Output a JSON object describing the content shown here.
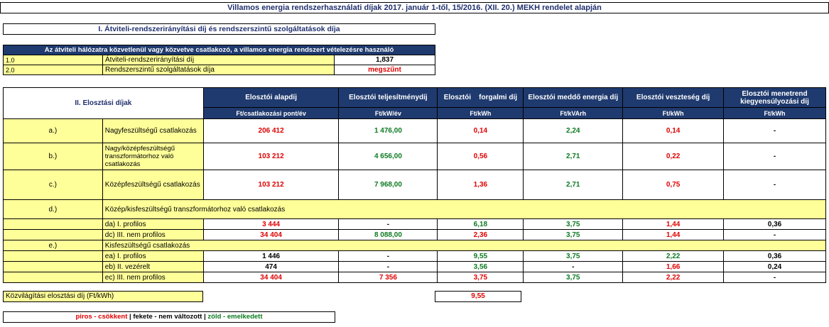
{
  "title": "Villamos energia rendszerhasználati díjak 2017. január 1-től, 15/2016. (XII. 20.) MEKH rendelet alapján",
  "section1": {
    "title": "I. Átviteli-rendszerirányítási díj és rendszerszintű szolgáltatások díja",
    "header": "Az átviteli hálózatra közvetlenül vagy közvetve csatlakozó, a villamos energia rendszert vételezésre használó",
    "rows": [
      {
        "code": "1.0",
        "label": "Átviteli-rendszerirányítási díj",
        "value": "1,837"
      },
      {
        "code": "2.0",
        "label": "Rendszerszintű szolgáltatások díja",
        "value": "megszűnt"
      }
    ]
  },
  "section2": {
    "title": "II. Elosztási díjak",
    "columns": [
      {
        "name": "Elosztói alapdíj",
        "unit": "Ft/csatlakozási pont/év"
      },
      {
        "name": "Elosztói teljesítménydíj",
        "unit": "Ft/kW/év"
      },
      {
        "name": "Elosztói    forgalmi díj",
        "unit": "Ft/kWh"
      },
      {
        "name": "Elosztói meddő energia díj",
        "unit": "Ft/kVArh"
      },
      {
        "name": "Elosztói veszteség díj",
        "unit": "Ft/kWh"
      },
      {
        "name": "Elosztói menetrend kiegyensúlyozási díj",
        "unit": "Ft/kWh"
      }
    ],
    "rows": {
      "a": {
        "code": "a.)",
        "label": "Nagyfeszültségű csatlakozás",
        "v": [
          "206 412",
          "1 476,00",
          "0,14",
          "2,24",
          "0,14",
          "-"
        ]
      },
      "b": {
        "code": "b.)",
        "label": "Nagy/középfeszültségű transzformátorhoz való csatlakozás",
        "v": [
          "103 212",
          "4 656,00",
          "0,56",
          "2,71",
          "0,22",
          "-"
        ]
      },
      "c": {
        "code": "c.)",
        "label": "Középfeszültségű csatlakozás",
        "v": [
          "103 212",
          "7 968,00",
          "1,36",
          "2,71",
          "0,75",
          "-"
        ]
      },
      "d": {
        "code": "d.)",
        "label": "Közép/kisfeszültségű transzformátorhoz való csatlakozás"
      },
      "da": {
        "label": "da) I. profilos",
        "v": [
          "3 444",
          "-",
          "6,18",
          "3,75",
          "1,44",
          "0,36"
        ]
      },
      "dc": {
        "label": "dc) III. nem profilos",
        "v": [
          "34 404",
          "8 088,00",
          "2,36",
          "3,75",
          "1,44",
          "-"
        ]
      },
      "e": {
        "code": "e.)",
        "label": "Kisfeszültségű csatlakozás"
      },
      "ea": {
        "label": "ea) I. profilos",
        "v": [
          "1 446",
          "-",
          "9,55",
          "3,75",
          "2,22",
          "0,36"
        ]
      },
      "eb": {
        "label": "eb) II. vezérelt",
        "v": [
          "474",
          "-",
          "3,56",
          "-",
          "1,66",
          "0,24"
        ]
      },
      "ec": {
        "label": "ec) III. nem profilos",
        "v": [
          "34 404",
          "7 356",
          "3,75",
          "3,75",
          "2,22",
          "-"
        ]
      }
    }
  },
  "kozvilagitas": {
    "label": "Közvilágítási elosztási díj (Ft/kWh)",
    "value": "9,55"
  },
  "legend": {
    "red": "piros - csökkent",
    "sep": "|",
    "black": "fekete - nem változott",
    "green": "zöld - emelkedett"
  },
  "colors": {
    "header_bg": "#1f3a6e",
    "highlight": "#ffff99",
    "decrease": "#e00000",
    "increase": "#0c7a20"
  }
}
